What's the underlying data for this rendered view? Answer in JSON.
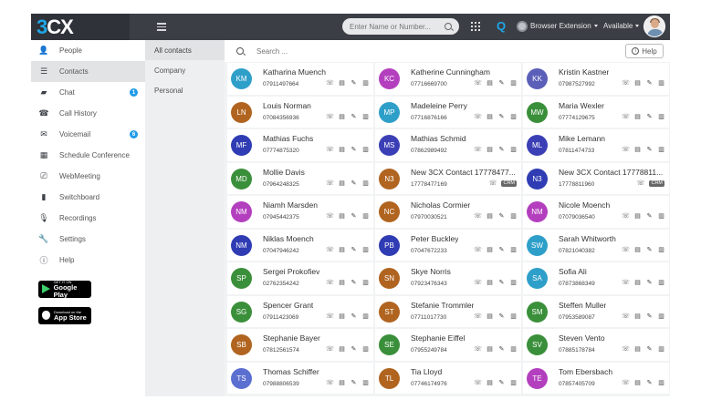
{
  "header": {
    "logo_3": "3",
    "logo_cx": "CX",
    "search_placeholder": "Enter Name or Number...",
    "q_label": "Q",
    "extension_label": "Browser Extension",
    "status_label": "Available"
  },
  "nav": {
    "items": [
      {
        "label": "People",
        "icon": "person-icon",
        "glyph": "👤"
      },
      {
        "label": "Contacts",
        "icon": "contacts-icon",
        "glyph": "☰"
      },
      {
        "label": "Chat",
        "icon": "chat-icon",
        "glyph": "▰",
        "badge": "1"
      },
      {
        "label": "Call History",
        "icon": "phone-icon",
        "glyph": "☎"
      },
      {
        "label": "Voicemail",
        "icon": "voicemail-icon",
        "glyph": "✉",
        "badge": "6"
      },
      {
        "label": "Schedule Conference",
        "icon": "calendar-icon",
        "glyph": "▦"
      },
      {
        "label": "WebMeeting",
        "icon": "webmeeting-icon",
        "glyph": "⎚"
      },
      {
        "label": "Switchboard",
        "icon": "switchboard-icon",
        "glyph": "▮"
      },
      {
        "label": "Recordings",
        "icon": "microphone-icon",
        "glyph": "🎙"
      },
      {
        "label": "Settings",
        "icon": "wrench-icon",
        "glyph": "🔧"
      },
      {
        "label": "Help",
        "icon": "info-icon",
        "glyph": "ⓘ"
      }
    ],
    "google_play": {
      "small": "GET IT ON",
      "big": "Google Play"
    },
    "app_store": {
      "small": "Download on the",
      "big": "App Store"
    }
  },
  "categories": [
    "All contacts",
    "Company",
    "Personal"
  ],
  "search": {
    "placeholder": "Search ...",
    "help_label": "Help"
  },
  "colors": {
    "teal": "#2ea0c9",
    "purple": "#b43fbf",
    "brown": "#b5651d",
    "blue": "#2f3db4",
    "green": "#3a8f3a",
    "indigo": "#3a47b8"
  },
  "contacts": [
    {
      "initials": "KM",
      "name": "Katharina Muench",
      "number": "07911497664",
      "color": "#2e9fc9",
      "crm": false
    },
    {
      "initials": "KC",
      "name": "Katherine Cunningham",
      "number": "07716669700",
      "color": "#b33fbe",
      "crm": false
    },
    {
      "initials": "KK",
      "name": "Kristin Kastner",
      "number": "07987527992",
      "color": "#5b5fb8",
      "crm": false
    },
    {
      "initials": "LN",
      "name": "Louis Norman",
      "number": "07084356936",
      "color": "#b0641f",
      "crm": false
    },
    {
      "initials": "MP",
      "name": "Madeleine Perry",
      "number": "07716876166",
      "color": "#2e9fc9",
      "crm": false
    },
    {
      "initials": "MW",
      "name": "Maria Wexler",
      "number": "07774129675",
      "color": "#3a8f3a",
      "crm": false
    },
    {
      "initials": "MF",
      "name": "Mathias Fuchs",
      "number": "07774875320",
      "color": "#2f3cb3",
      "crm": false
    },
    {
      "initials": "MS",
      "name": "Mathias Schmid",
      "number": "07862989492",
      "color": "#3b3fb5",
      "crm": false
    },
    {
      "initials": "ML",
      "name": "Mike Lemann",
      "number": "07811474733",
      "color": "#3b3fb5",
      "crm": false
    },
    {
      "initials": "MD",
      "name": "Mollie Davis",
      "number": "07964248325",
      "color": "#3a8f3a",
      "crm": false
    },
    {
      "initials": "N3",
      "name": "New 3CX Contact 17778477...",
      "number": "17778477169",
      "color": "#b0641f",
      "crm": true
    },
    {
      "initials": "N3",
      "name": "New 3CX Contact 17778811...",
      "number": "17778811960",
      "color": "#2f3cb3",
      "crm": true
    },
    {
      "initials": "NM",
      "name": "Niamh Marsden",
      "number": "07945442375",
      "color": "#b33fbe",
      "crm": false
    },
    {
      "initials": "NC",
      "name": "Nicholas Cormier",
      "number": "07970030521",
      "color": "#b0641f",
      "crm": false
    },
    {
      "initials": "NM",
      "name": "Nicole Moench",
      "number": "07079036540",
      "color": "#b33fbe",
      "crm": false
    },
    {
      "initials": "NM",
      "name": "Niklas Moench",
      "number": "07047946242",
      "color": "#2f3cb3",
      "crm": false
    },
    {
      "initials": "PB",
      "name": "Peter Buckley",
      "number": "07047672233",
      "color": "#2f3cb3",
      "crm": false
    },
    {
      "initials": "SW",
      "name": "Sarah Whitworth",
      "number": "07821040382",
      "color": "#2e9fc9",
      "crm": false
    },
    {
      "initials": "SP",
      "name": "Sergei Prokofiev",
      "number": "02762354242",
      "color": "#3a8f3a",
      "crm": false
    },
    {
      "initials": "SN",
      "name": "Skye Norris",
      "number": "07923476343",
      "color": "#b0641f",
      "crm": false
    },
    {
      "initials": "SA",
      "name": "Sofia Ali",
      "number": "07873868349",
      "color": "#2e9fc9",
      "crm": false
    },
    {
      "initials": "SG",
      "name": "Spencer Grant",
      "number": "07911423069",
      "color": "#3a8f3a",
      "crm": false
    },
    {
      "initials": "ST",
      "name": "Stefanie Trommler",
      "number": "07711017730",
      "color": "#b0641f",
      "crm": false
    },
    {
      "initials": "SM",
      "name": "Steffen Muller",
      "number": "07953589087",
      "color": "#3a8f3a",
      "crm": false
    },
    {
      "initials": "SB",
      "name": "Stephanie Bayer",
      "number": "07812561574",
      "color": "#b0641f",
      "crm": false
    },
    {
      "initials": "SE",
      "name": "Stephanie Eiffel",
      "number": "07955249784",
      "color": "#3a8f3a",
      "crm": false
    },
    {
      "initials": "SV",
      "name": "Steven Vento",
      "number": "07885178784",
      "color": "#3a8f3a",
      "crm": false
    },
    {
      "initials": "TS",
      "name": "Thomas Schiffer",
      "number": "07988806539",
      "color": "#5b6fd0",
      "crm": false
    },
    {
      "initials": "TL",
      "name": "Tia Lloyd",
      "number": "07746174976",
      "color": "#b0641f",
      "crm": false
    },
    {
      "initials": "TE",
      "name": "Tom Ebersbach",
      "number": "07857405709",
      "color": "#b33fbe",
      "crm": false
    }
  ],
  "crm_label": "CRM"
}
